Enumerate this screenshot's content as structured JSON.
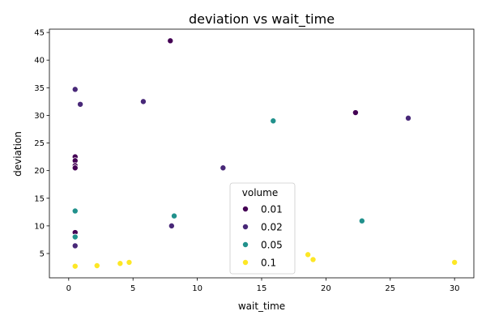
{
  "chart_data": {
    "type": "scatter",
    "title": "deviation vs wait_time",
    "xlabel": "wait_time",
    "ylabel": "deviation",
    "xlim": [
      -1.5,
      31.5
    ],
    "ylim": [
      0.6,
      45.6
    ],
    "xticks": [
      0,
      5,
      10,
      15,
      20,
      25,
      30
    ],
    "yticks": [
      5,
      10,
      15,
      20,
      25,
      30,
      35,
      40,
      45
    ],
    "grid": false,
    "legend": {
      "title": "volume",
      "placement": "lower-center"
    },
    "series": [
      {
        "name": "0.01",
        "color": "#440154",
        "points": [
          {
            "x": 7.9,
            "y": 43.5
          },
          {
            "x": 22.3,
            "y": 30.5
          },
          {
            "x": 0.5,
            "y": 22.5
          },
          {
            "x": 0.5,
            "y": 21.8
          },
          {
            "x": 0.5,
            "y": 20.9
          },
          {
            "x": 0.5,
            "y": 20.5
          },
          {
            "x": 0.5,
            "y": 8.8
          }
        ]
      },
      {
        "name": "0.02",
        "color": "#482878",
        "points": [
          {
            "x": 0.5,
            "y": 34.7
          },
          {
            "x": 0.9,
            "y": 32.0
          },
          {
            "x": 5.8,
            "y": 32.5
          },
          {
            "x": 12.0,
            "y": 20.5
          },
          {
            "x": 26.4,
            "y": 29.5
          },
          {
            "x": 8.0,
            "y": 10.0
          },
          {
            "x": 0.5,
            "y": 6.4
          }
        ]
      },
      {
        "name": "0.05",
        "color": "#21918c",
        "points": [
          {
            "x": 15.9,
            "y": 29.0
          },
          {
            "x": 0.5,
            "y": 12.7
          },
          {
            "x": 8.2,
            "y": 11.8
          },
          {
            "x": 22.8,
            "y": 10.9
          },
          {
            "x": 0.5,
            "y": 8.0
          }
        ]
      },
      {
        "name": "0.1",
        "color": "#fde725",
        "points": [
          {
            "x": 0.5,
            "y": 2.7
          },
          {
            "x": 2.2,
            "y": 2.8
          },
          {
            "x": 4.0,
            "y": 3.2
          },
          {
            "x": 4.7,
            "y": 3.4
          },
          {
            "x": 18.6,
            "y": 4.8
          },
          {
            "x": 19.0,
            "y": 3.9
          },
          {
            "x": 30.0,
            "y": 3.4
          }
        ]
      }
    ]
  }
}
